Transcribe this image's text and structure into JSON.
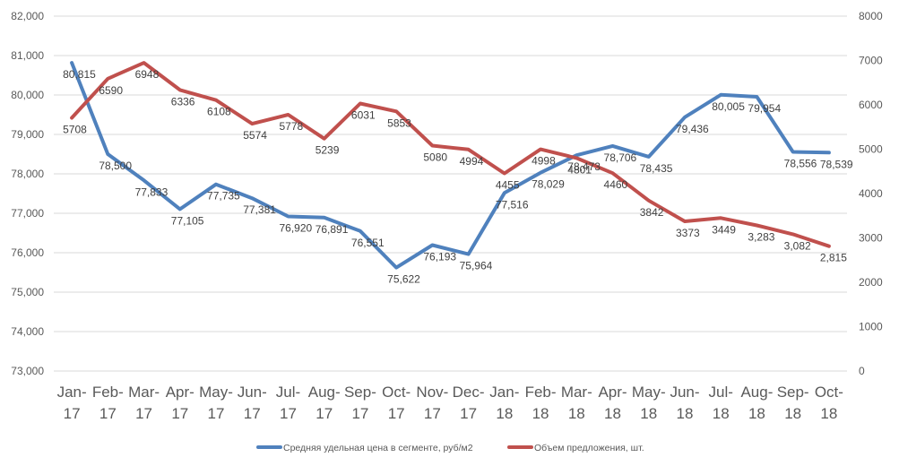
{
  "chart_data": {
    "type": "line",
    "categories": [
      "Jan-17",
      "Feb-17",
      "Mar-17",
      "Apr-17",
      "May-17",
      "Jun-17",
      "Jul-17",
      "Aug-17",
      "Sep-17",
      "Oct-17",
      "Nov-17",
      "Dec-17",
      "Jan-18",
      "Feb-18",
      "Mar-18",
      "Apr-18",
      "May-18",
      "Jun-18",
      "Jul-18",
      "Aug-18",
      "Sep-18",
      "Oct-18"
    ],
    "category_lines": [
      [
        "Jan-",
        "17"
      ],
      [
        "Feb-",
        "17"
      ],
      [
        "Mar-",
        "17"
      ],
      [
        "Apr-",
        "17"
      ],
      [
        "May-",
        "17"
      ],
      [
        "Jun-",
        "17"
      ],
      [
        "Jul-",
        "17"
      ],
      [
        "Aug-",
        "17"
      ],
      [
        "Sep-",
        "17"
      ],
      [
        "Oct-",
        "17"
      ],
      [
        "Nov-",
        "17"
      ],
      [
        "Dec-",
        "17"
      ],
      [
        "Jan-",
        "18"
      ],
      [
        "Feb-",
        "18"
      ],
      [
        "Mar-",
        "18"
      ],
      [
        "Apr-",
        "18"
      ],
      [
        "May-",
        "18"
      ],
      [
        "Jun-",
        "18"
      ],
      [
        "Jul-",
        "18"
      ],
      [
        "Aug-",
        "18"
      ],
      [
        "Sep-",
        "18"
      ],
      [
        "Oct-",
        "18"
      ]
    ],
    "series": [
      {
        "name": "Средняя удельная цена в сегменте, руб/м2",
        "axis": "left",
        "color": "#4f81bd",
        "values": [
          80815,
          78500,
          77833,
          77105,
          77735,
          77381,
          76920,
          76891,
          76551,
          75622,
          76193,
          75964,
          77516,
          78029,
          78473,
          78706,
          78435,
          79436,
          80005,
          79954,
          78556,
          78539
        ],
        "labels": [
          "80,815",
          "78,500",
          "77,833",
          "77,105",
          "77,735",
          "77,381",
          "76,920",
          "76,891",
          "76,551",
          "75,622",
          "76,193",
          "75,964",
          "77,516",
          "78,029",
          "78,473",
          "78,706",
          "78,435",
          "79,436",
          "80,005",
          "79,954",
          "78,556",
          "78,539"
        ]
      },
      {
        "name": "Объем предложения, шт.",
        "axis": "right",
        "color": "#c0504d",
        "values": [
          5708,
          6590,
          6948,
          6336,
          6108,
          5574,
          5778,
          5239,
          6031,
          5853,
          5080,
          4994,
          4455,
          4998,
          4801,
          4460,
          3842,
          3373,
          3449,
          3283,
          3082,
          2815
        ],
        "labels": [
          "5708",
          "6590",
          "6948",
          "6336",
          "6108",
          "5574",
          "5778",
          "5239",
          "6031",
          "5853",
          "5080",
          "4994",
          "4455",
          "4998",
          "4801",
          "4460",
          "3842",
          "3373",
          "3449",
          "3,283",
          "3,082",
          "2,815"
        ]
      }
    ],
    "y_left": {
      "ylim": [
        73000,
        82000
      ],
      "ticks": [
        73000,
        74000,
        75000,
        76000,
        77000,
        78000,
        79000,
        80000,
        81000,
        82000
      ],
      "tick_labels": [
        "73,000",
        "74,000",
        "75,000",
        "76,000",
        "77,000",
        "78,000",
        "79,000",
        "80,000",
        "81,000",
        "82,000"
      ]
    },
    "y_right": {
      "ylim": [
        0,
        8000
      ],
      "ticks": [
        0,
        1000,
        2000,
        3000,
        4000,
        5000,
        6000,
        7000,
        8000
      ],
      "tick_labels": [
        "0",
        "1000",
        "2000",
        "3000",
        "4000",
        "5000",
        "6000",
        "7000",
        "8000"
      ]
    },
    "grid": true,
    "legend_position": "bottom",
    "title": "",
    "xlabel": "",
    "ylabel": ""
  }
}
